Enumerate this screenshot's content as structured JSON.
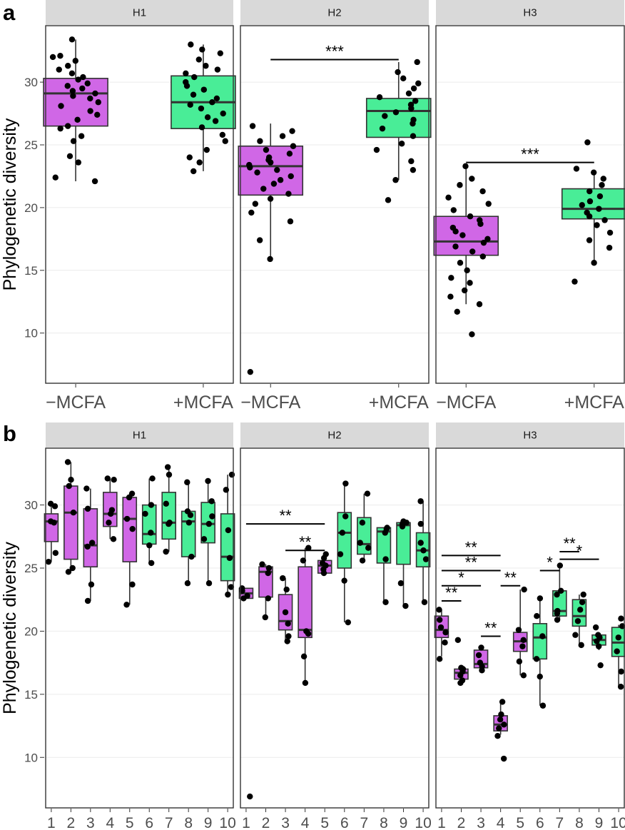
{
  "colors": {
    "minus": "#D067E6",
    "plus": "#49ED97",
    "strip": "#D9D9D9",
    "grid": "#EBEBEB"
  },
  "chart_data": [
    {
      "id": "a",
      "panel_label": "a",
      "type": "box",
      "ylabel": "Phylogenetic diversity",
      "ylim": [
        6,
        34.5
      ],
      "yticks": [
        10,
        15,
        20,
        25,
        30
      ],
      "facets": [
        {
          "name": "H1",
          "categories": [
            "−MCFA",
            "+MCFA"
          ],
          "boxes": [
            {
              "q1": 26.5,
              "median": 29.1,
              "q3": 30.3,
              "whisker_low": 22.1,
              "whisker_high": 33.4,
              "points": [
                22.1,
                22.4,
                23.6,
                24.1,
                25.3,
                25.7,
                26.3,
                26.5,
                27.0,
                27.4,
                27.7,
                28.1,
                28.4,
                28.7,
                28.9,
                29.1,
                29.3,
                29.5,
                29.7,
                29.9,
                30.2,
                30.4,
                30.7,
                31.0,
                31.3,
                31.7,
                32.0,
                32.1,
                33.4
              ]
            },
            {
              "q1": 26.3,
              "median": 28.4,
              "q3": 30.5,
              "whisker_low": 22.9,
              "whisker_high": 33.0,
              "points": [
                22.9,
                23.6,
                24.0,
                24.6,
                25.3,
                25.8,
                26.4,
                26.9,
                27.2,
                27.5,
                27.9,
                28.2,
                28.4,
                28.7,
                29.0,
                29.4,
                29.7,
                30.0,
                30.4,
                30.7,
                31.0,
                31.3,
                31.8,
                32.3,
                32.6,
                33.0
              ]
            }
          ],
          "significance": []
        },
        {
          "name": "H2",
          "categories": [
            "−MCFA",
            "+MCFA"
          ],
          "boxes": [
            {
              "q1": 21.0,
              "median": 23.3,
              "q3": 24.9,
              "whisker_low": 15.9,
              "whisker_high": 26.7,
              "points": [
                6.9,
                15.9,
                17.4,
                18.9,
                19.6,
                20.3,
                20.7,
                21.1,
                21.5,
                21.9,
                22.2,
                22.5,
                22.8,
                23.0,
                23.2,
                23.4,
                23.6,
                23.8,
                24.0,
                24.3,
                24.6,
                24.9,
                25.3,
                25.7,
                26.1,
                26.5
              ]
            },
            {
              "q1": 25.6,
              "median": 27.7,
              "q3": 28.7,
              "whisker_low": 22.2,
              "whisker_high": 31.6,
              "points": [
                20.6,
                22.2,
                23.0,
                23.7,
                24.6,
                25.1,
                25.7,
                26.3,
                26.7,
                27.0,
                27.3,
                27.6,
                27.9,
                28.2,
                28.5,
                28.8,
                29.1,
                29.5,
                29.9,
                30.3,
                30.8,
                31.6
              ]
            }
          ],
          "significance": [
            {
              "from": 0,
              "to": 1,
              "label": "***",
              "y": 31.8
            }
          ]
        },
        {
          "name": "H3",
          "categories": [
            "−MCFA",
            "+MCFA"
          ],
          "boxes": [
            {
              "q1": 16.2,
              "median": 17.3,
              "q3": 19.3,
              "whisker_low": 12.3,
              "whisker_high": 23.3,
              "points": [
                9.9,
                11.7,
                12.3,
                12.9,
                13.4,
                14.0,
                14.4,
                15.0,
                15.6,
                16.1,
                16.5,
                16.9,
                17.2,
                17.5,
                17.8,
                18.1,
                18.4,
                18.7,
                19.0,
                19.3,
                19.8,
                20.3,
                20.8,
                21.3,
                21.8,
                22.3,
                23.3
              ]
            },
            {
              "q1": 19.1,
              "median": 19.9,
              "q3": 21.5,
              "whisker_low": 15.6,
              "whisker_high": 22.8,
              "points": [
                14.1,
                15.6,
                16.8,
                17.4,
                18.0,
                18.6,
                19.0,
                19.3,
                19.6,
                19.9,
                20.2,
                20.5,
                20.9,
                21.3,
                21.8,
                22.3,
                22.8,
                23.1,
                25.2
              ]
            }
          ],
          "significance": [
            {
              "from": 0,
              "to": 1,
              "label": "***",
              "y": 23.6
            }
          ]
        }
      ]
    },
    {
      "id": "b",
      "panel_label": "b",
      "type": "box",
      "ylabel": "Phylogenetic diversity",
      "ylim": [
        6,
        34.5
      ],
      "yticks": [
        10,
        15,
        20,
        25,
        30
      ],
      "colors_by_category": [
        "minus",
        "minus",
        "minus",
        "minus",
        "minus",
        "plus",
        "plus",
        "plus",
        "plus",
        "plus"
      ],
      "facets": [
        {
          "name": "H1",
          "categories": [
            "1",
            "2",
            "3",
            "4",
            "5",
            "6",
            "7",
            "8",
            "9",
            "10"
          ],
          "boxes": [
            {
              "q1": 27.1,
              "median": 28.7,
              "q3": 29.3,
              "whisker_low": 25.5,
              "whisker_high": 30.1,
              "points": [
                25.5,
                26.2,
                28.6,
                28.7,
                29.9,
                30.1
              ]
            },
            {
              "q1": 25.7,
              "median": 29.4,
              "q3": 31.5,
              "whisker_low": 24.7,
              "whisker_high": 33.4,
              "points": [
                24.7,
                25.0,
                29.4,
                31.5,
                32.0,
                33.4
              ]
            },
            {
              "q1": 25.1,
              "median": 26.8,
              "q3": 29.7,
              "whisker_low": 22.4,
              "whisker_high": 31.3,
              "points": [
                22.4,
                23.7,
                26.7,
                27.0,
                29.7,
                31.3
              ]
            },
            {
              "q1": 28.3,
              "median": 29.3,
              "q3": 31.0,
              "whisker_low": 27.3,
              "whisker_high": 32.1,
              "points": [
                27.3,
                28.6,
                29.3,
                29.6,
                32.0,
                32.1
              ]
            },
            {
              "q1": 25.5,
              "median": 28.9,
              "q3": 30.6,
              "whisker_low": 22.1,
              "whisker_high": 30.9,
              "points": [
                22.1,
                23.7,
                28.1,
                28.9,
                30.6,
                30.9
              ]
            },
            {
              "q1": 26.9,
              "median": 27.7,
              "q3": 30.0,
              "whisker_low": 25.4,
              "whisker_high": 32.1,
              "points": [
                25.4,
                26.8,
                27.8,
                29.3,
                30.0,
                32.1
              ]
            },
            {
              "q1": 27.3,
              "median": 28.6,
              "q3": 31.0,
              "whisker_low": 26.3,
              "whisker_high": 33.0,
              "points": [
                26.3,
                28.5,
                28.6,
                30.1,
                32.4,
                33.0
              ]
            },
            {
              "q1": 25.9,
              "median": 28.7,
              "q3": 29.5,
              "whisker_low": 23.8,
              "whisker_high": 31.8,
              "points": [
                23.8,
                25.9,
                28.6,
                29.2,
                29.5,
                31.8
              ]
            },
            {
              "q1": 27.0,
              "median": 28.5,
              "q3": 30.2,
              "whisker_low": 23.8,
              "whisker_high": 31.9,
              "points": [
                23.8,
                27.3,
                28.5,
                29.1,
                30.3,
                31.9
              ]
            },
            {
              "q1": 24.0,
              "median": 25.9,
              "q3": 29.3,
              "whisker_low": 22.9,
              "whisker_high": 32.4,
              "points": [
                22.9,
                23.5,
                25.8,
                28.0,
                31.2,
                32.4
              ]
            }
          ],
          "significance": []
        },
        {
          "name": "H2",
          "categories": [
            "1",
            "2",
            "3",
            "4",
            "5",
            "6",
            "7",
            "8",
            "9",
            "10"
          ],
          "boxes": [
            {
              "q1": 22.6,
              "median": 23.0,
              "q3": 23.4,
              "whisker_low": 22.6,
              "whisker_high": 23.4,
              "points": [
                6.9,
                22.6,
                22.8,
                23.2,
                23.4
              ]
            },
            {
              "q1": 22.7,
              "median": 24.7,
              "q3": 25.1,
              "whisker_low": 21.1,
              "whisker_high": 25.3,
              "points": [
                21.1,
                22.6,
                24.6,
                25.0,
                25.3
              ]
            },
            {
              "q1": 20.1,
              "median": 20.8,
              "q3": 22.9,
              "whisker_low": 19.2,
              "whisker_high": 24.2,
              "points": [
                19.2,
                19.6,
                20.6,
                21.5,
                23.3,
                24.2
              ]
            },
            {
              "q1": 19.5,
              "median": 20.1,
              "q3": 25.1,
              "whisker_low": 15.9,
              "whisker_high": 26.6,
              "points": [
                15.9,
                18.0,
                19.8,
                20.0,
                25.6,
                26.6
              ]
            },
            {
              "q1": 24.6,
              "median": 25.2,
              "q3": 25.6,
              "whisker_low": 24.6,
              "whisker_high": 26.1,
              "points": [
                24.6,
                24.9,
                25.2,
                25.4,
                25.8,
                26.1
              ]
            },
            {
              "q1": 25.0,
              "median": 27.8,
              "q3": 29.4,
              "whisker_low": 20.7,
              "whisker_high": 31.7,
              "points": [
                20.7,
                24.0,
                26.1,
                27.8,
                29.1,
                31.7
              ]
            },
            {
              "q1": 26.1,
              "median": 26.9,
              "q3": 29.0,
              "whisker_low": 25.6,
              "whisker_high": 30.9,
              "points": [
                25.6,
                26.6,
                27.0,
                28.6,
                30.9
              ]
            },
            {
              "q1": 25.4,
              "median": 27.9,
              "q3": 28.2,
              "whisker_low": 22.3,
              "whisker_high": 28.2,
              "points": [
                22.3,
                25.7,
                27.8,
                28.1,
                28.2
              ]
            },
            {
              "q1": 25.3,
              "median": 28.4,
              "q3": 28.6,
              "whisker_low": 22.0,
              "whisker_high": 28.7,
              "points": [
                22.0,
                23.8,
                28.3,
                28.5,
                28.6,
                28.7
              ]
            },
            {
              "q1": 25.1,
              "median": 26.4,
              "q3": 27.8,
              "whisker_low": 22.3,
              "whisker_high": 30.3,
              "points": [
                22.3,
                25.7,
                26.4,
                27.0,
                28.5,
                30.3
              ]
            }
          ],
          "significance": [
            {
              "from": 0,
              "to": 4,
              "label": "**",
              "y": 28.5
            },
            {
              "from": 2,
              "to": 4,
              "label": "**",
              "y": 26.4
            }
          ]
        },
        {
          "name": "H3",
          "categories": [
            "1",
            "2",
            "3",
            "4",
            "5",
            "6",
            "7",
            "8",
            "9",
            "10"
          ],
          "boxes": [
            {
              "q1": 19.5,
              "median": 20.1,
              "q3": 21.2,
              "whisker_low": 18.0,
              "whisker_high": 21.7,
              "points": [
                17.8,
                19.1,
                19.9,
                20.3,
                20.9,
                21.7
              ]
            },
            {
              "q1": 16.2,
              "median": 16.7,
              "q3": 17.0,
              "whisker_low": 15.9,
              "whisker_high": 17.2,
              "points": [
                15.9,
                16.1,
                16.5,
                16.8,
                17.0,
                17.1,
                19.3
              ]
            },
            {
              "q1": 17.1,
              "median": 17.4,
              "q3": 18.5,
              "whisker_low": 16.9,
              "whisker_high": 18.7,
              "points": [
                16.9,
                17.2,
                17.5,
                18.1,
                18.7
              ]
            },
            {
              "q1": 12.1,
              "median": 12.6,
              "q3": 13.3,
              "whisker_low": 11.8,
              "whisker_high": 14.4,
              "points": [
                9.9,
                11.7,
                12.3,
                12.6,
                13.0,
                13.4,
                14.4
              ]
            },
            {
              "q1": 18.4,
              "median": 19.2,
              "q3": 19.9,
              "whisker_low": 16.5,
              "whisker_high": 23.3,
              "points": [
                16.5,
                17.6,
                18.8,
                19.3,
                20.1,
                23.3
              ]
            },
            {
              "q1": 17.8,
              "median": 19.5,
              "q3": 20.6,
              "whisker_low": 14.1,
              "whisker_high": 22.6,
              "points": [
                14.1,
                16.4,
                17.8,
                19.6,
                21.2,
                22.6
              ]
            },
            {
              "q1": 21.2,
              "median": 21.6,
              "q3": 23.2,
              "whisker_low": 20.9,
              "whisker_high": 25.2,
              "points": [
                20.9,
                21.4,
                21.6,
                22.9,
                23.2,
                25.2
              ]
            },
            {
              "q1": 20.4,
              "median": 21.2,
              "q3": 22.5,
              "whisker_low": 18.9,
              "whisker_high": 22.9,
              "points": [
                18.9,
                19.7,
                20.8,
                21.7,
                22.3,
                22.9
              ]
            },
            {
              "q1": 18.9,
              "median": 19.3,
              "q3": 19.7,
              "whisker_low": 18.5,
              "whisker_high": 19.8,
              "points": [
                17.3,
                18.8,
                19.2,
                19.5,
                19.7,
                20.3
              ]
            },
            {
              "q1": 18.0,
              "median": 19.1,
              "q3": 20.3,
              "whisker_low": 15.6,
              "whisker_high": 20.5,
              "points": [
                15.6,
                16.8,
                18.4,
                19.5,
                20.4,
                21.0
              ]
            }
          ],
          "significance": [
            {
              "from": 0,
              "to": 3,
              "label": "**",
              "y": 26.0
            },
            {
              "from": 0,
              "to": 3,
              "label": "**",
              "y": 24.8
            },
            {
              "from": 0,
              "to": 2,
              "label": "*",
              "y": 23.6
            },
            {
              "from": 0,
              "to": 1,
              "label": "**",
              "y": 22.4
            },
            {
              "from": 3,
              "to": 4,
              "label": "**",
              "y": 23.6
            },
            {
              "from": 2,
              "to": 3,
              "label": "**",
              "y": 19.6
            },
            {
              "from": 5,
              "to": 6,
              "label": "*",
              "y": 24.8
            },
            {
              "from": 6,
              "to": 7,
              "label": "**",
              "y": 26.3
            },
            {
              "from": 6,
              "to": 8,
              "label": "*",
              "y": 25.7
            }
          ]
        }
      ]
    }
  ]
}
